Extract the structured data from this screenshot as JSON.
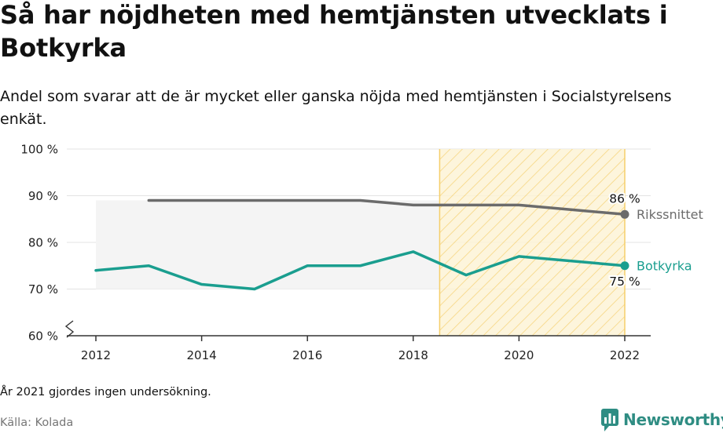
{
  "title": "Så har nöjdheten med hemtjänsten utvecklats i Botkyrka",
  "subtitle": "Andel som svarar att de är mycket eller ganska nöjda med hemtjänsten i Socialstyrelsens enkät.",
  "note": "År 2021 gjordes ingen undersökning.",
  "source": "Källa: Kolada",
  "brand": "Newsworthy",
  "colors": {
    "rikssnittet": "#6b6b6b",
    "botkyrka": "#1a9e8f",
    "highlight_fill": "#fdf3d6",
    "highlight_stripe": "#f5cf6b",
    "band": "#f4f4f4",
    "grid": "#e3e3e3",
    "axis": "#333333",
    "brand": "#2f8d83"
  },
  "chart_data": {
    "type": "line",
    "xlim": [
      2012,
      2022
    ],
    "ylim": [
      60,
      100
    ],
    "yticks": [
      60,
      70,
      80,
      90,
      100
    ],
    "ytick_labels": [
      "60 %",
      "70 %",
      "80 %",
      "90 %",
      "100 %"
    ],
    "xticks": [
      2012,
      2014,
      2016,
      2018,
      2020,
      2022
    ],
    "xtick_labels": [
      "2012",
      "2014",
      "2016",
      "2018",
      "2020",
      "2022"
    ],
    "highlight_range": [
      2018.5,
      2022
    ],
    "band_range": [
      2012,
      2018.5
    ],
    "band_y": [
      70,
      89
    ],
    "y_axis_break": true,
    "grid": true,
    "series": [
      {
        "name": "Rikssnittet",
        "x": [
          2013,
          2014,
          2015,
          2016,
          2017,
          2018,
          2019,
          2020,
          2022
        ],
        "y": [
          89,
          89,
          89,
          89,
          89,
          88,
          88,
          88,
          86
        ],
        "end_label": "86 %",
        "end_label_pos": "above"
      },
      {
        "name": "Botkyrka",
        "x": [
          2012,
          2013,
          2014,
          2015,
          2016,
          2017,
          2018,
          2019,
          2020,
          2022
        ],
        "y": [
          74,
          75,
          71,
          70,
          75,
          75,
          78,
          73,
          77,
          75
        ],
        "end_label": "75 %",
        "end_label_pos": "below"
      }
    ]
  }
}
